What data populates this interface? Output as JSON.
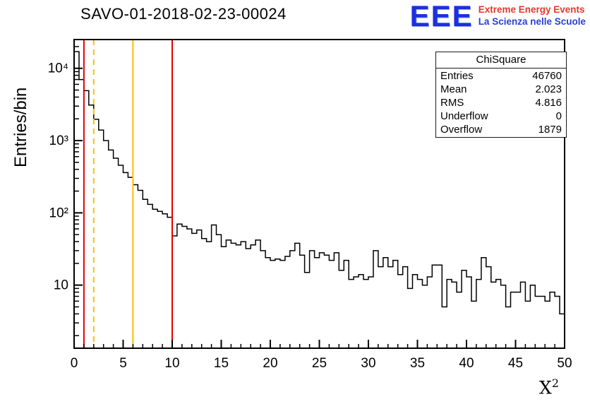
{
  "title": "SAVO-01-2018-02-23-00024",
  "logo": {
    "text": "EEE",
    "line1": "Extreme Energy Events",
    "line2": "La Scienza nelle Scuole",
    "color_logo": "#1d2fe0",
    "color_line1": "#e8372c",
    "color_line2": "#2741d6"
  },
  "stats": {
    "title": "ChiSquare",
    "rows": [
      {
        "label": "Entries",
        "value": "46760"
      },
      {
        "label": "Mean",
        "value": "2.023"
      },
      {
        "label": "RMS",
        "value": "4.816"
      },
      {
        "label": "Underflow",
        "value": "0"
      },
      {
        "label": "Overflow",
        "value": "1879"
      }
    ]
  },
  "chart_data": {
    "type": "bar",
    "style": "step-histogram",
    "title": "SAVO-01-2018-02-23-00024",
    "xlabel": "X^2",
    "xlabel_base": "X",
    "xlabel_sup": "2",
    "ylabel": "Entries/bin",
    "yscale": "log",
    "grid": false,
    "xlim": [
      0,
      50
    ],
    "ylim": [
      1.34,
      25000
    ],
    "x_start": 0,
    "bin_width": 0.5,
    "x_ticks": [
      0,
      5,
      10,
      15,
      20,
      25,
      30,
      35,
      40,
      45,
      50
    ],
    "x_tick_labels": [
      "0",
      "5",
      "10",
      "15",
      "20",
      "25",
      "30",
      "35",
      "40",
      "45",
      "50"
    ],
    "y_ticks": [
      10,
      100,
      1000,
      10000
    ],
    "y_tick_labels": [
      "10",
      "10²",
      "10³",
      "10⁴"
    ],
    "line_color": "#000000",
    "values": [
      17000,
      7000,
      4900,
      3100,
      1970,
      1400,
      1000,
      740,
      570,
      455,
      360,
      310,
      245,
      205,
      154,
      131,
      112,
      105,
      97,
      87,
      48,
      70,
      65,
      60,
      52,
      58,
      44,
      40,
      68,
      50,
      34,
      42,
      38,
      36,
      40,
      32,
      36,
      42,
      30,
      24,
      22,
      23,
      22,
      25,
      30,
      38,
      26,
      15,
      30,
      24,
      28,
      26,
      22,
      28,
      16,
      22,
      12,
      13,
      14,
      12,
      13,
      30,
      18,
      24,
      18,
      22,
      14,
      18,
      9,
      14,
      12,
      10,
      13,
      19,
      19,
      5,
      12,
      11,
      8,
      16,
      13,
      6,
      12,
      24,
      18,
      11,
      12,
      10,
      5,
      8,
      8,
      11,
      6,
      10,
      7,
      7,
      6,
      8,
      7,
      4
    ],
    "vlines": [
      {
        "x": 1,
        "color": "#e60000",
        "style": "solid"
      },
      {
        "x": 2,
        "color": "#fcbf00",
        "style": "dashed"
      },
      {
        "x": 6,
        "color": "#fcbf00",
        "style": "solid"
      },
      {
        "x": 10,
        "color": "#e60000",
        "style": "solid"
      }
    ]
  }
}
